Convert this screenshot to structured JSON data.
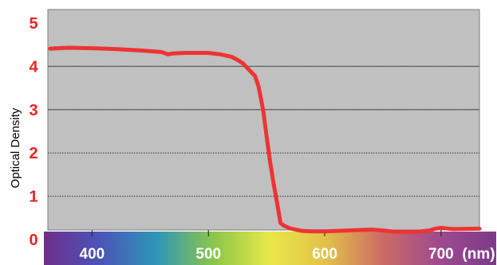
{
  "chart_data": {
    "type": "line",
    "ylabel": "Optical Density",
    "xunit": "(nm)",
    "xlim": [
      362,
      733
    ],
    "ylim": [
      0,
      5
    ],
    "y_ticks": [
      "0",
      "1",
      "2",
      "3",
      "4",
      "5"
    ],
    "x_ticks": [
      {
        "value": 400,
        "label": "400"
      },
      {
        "value": 500,
        "label": "500"
      },
      {
        "value": 600,
        "label": "600"
      },
      {
        "value": 700,
        "label": "700"
      }
    ],
    "grid": "horizontal dotted lines",
    "series": [
      {
        "x": [
          364,
          380,
          400,
          420,
          440,
          460,
          465,
          470,
          480,
          500,
          510,
          520,
          525,
          530,
          535,
          540,
          543,
          547,
          550,
          553,
          556,
          558,
          560,
          562,
          565,
          570,
          580,
          590,
          600,
          620,
          640,
          650,
          660,
          680,
          690,
          695,
          700,
          710,
          733
        ],
        "y": [
          4.41,
          4.43,
          4.42,
          4.4,
          4.37,
          4.33,
          4.28,
          4.3,
          4.31,
          4.31,
          4.28,
          4.22,
          4.15,
          4.06,
          3.92,
          3.78,
          3.55,
          3.0,
          2.4,
          1.8,
          1.3,
          1.0,
          0.7,
          0.38,
          0.32,
          0.26,
          0.2,
          0.19,
          0.19,
          0.21,
          0.23,
          0.21,
          0.18,
          0.18,
          0.21,
          0.25,
          0.27,
          0.24,
          0.25
        ]
      }
    ],
    "colors": {
      "plot_background": "#c0c0c0",
      "line": "#ee3333",
      "y_tick_labels": "#ee2222",
      "grid": "#333333",
      "spectrum": [
        "#6d2f8c",
        "#4a55b8",
        "#2e96b8",
        "#8cc64a",
        "#e8e84a",
        "#e2c04a",
        "#cc6a66",
        "#9e4a8e",
        "#7c3a8a"
      ]
    }
  }
}
